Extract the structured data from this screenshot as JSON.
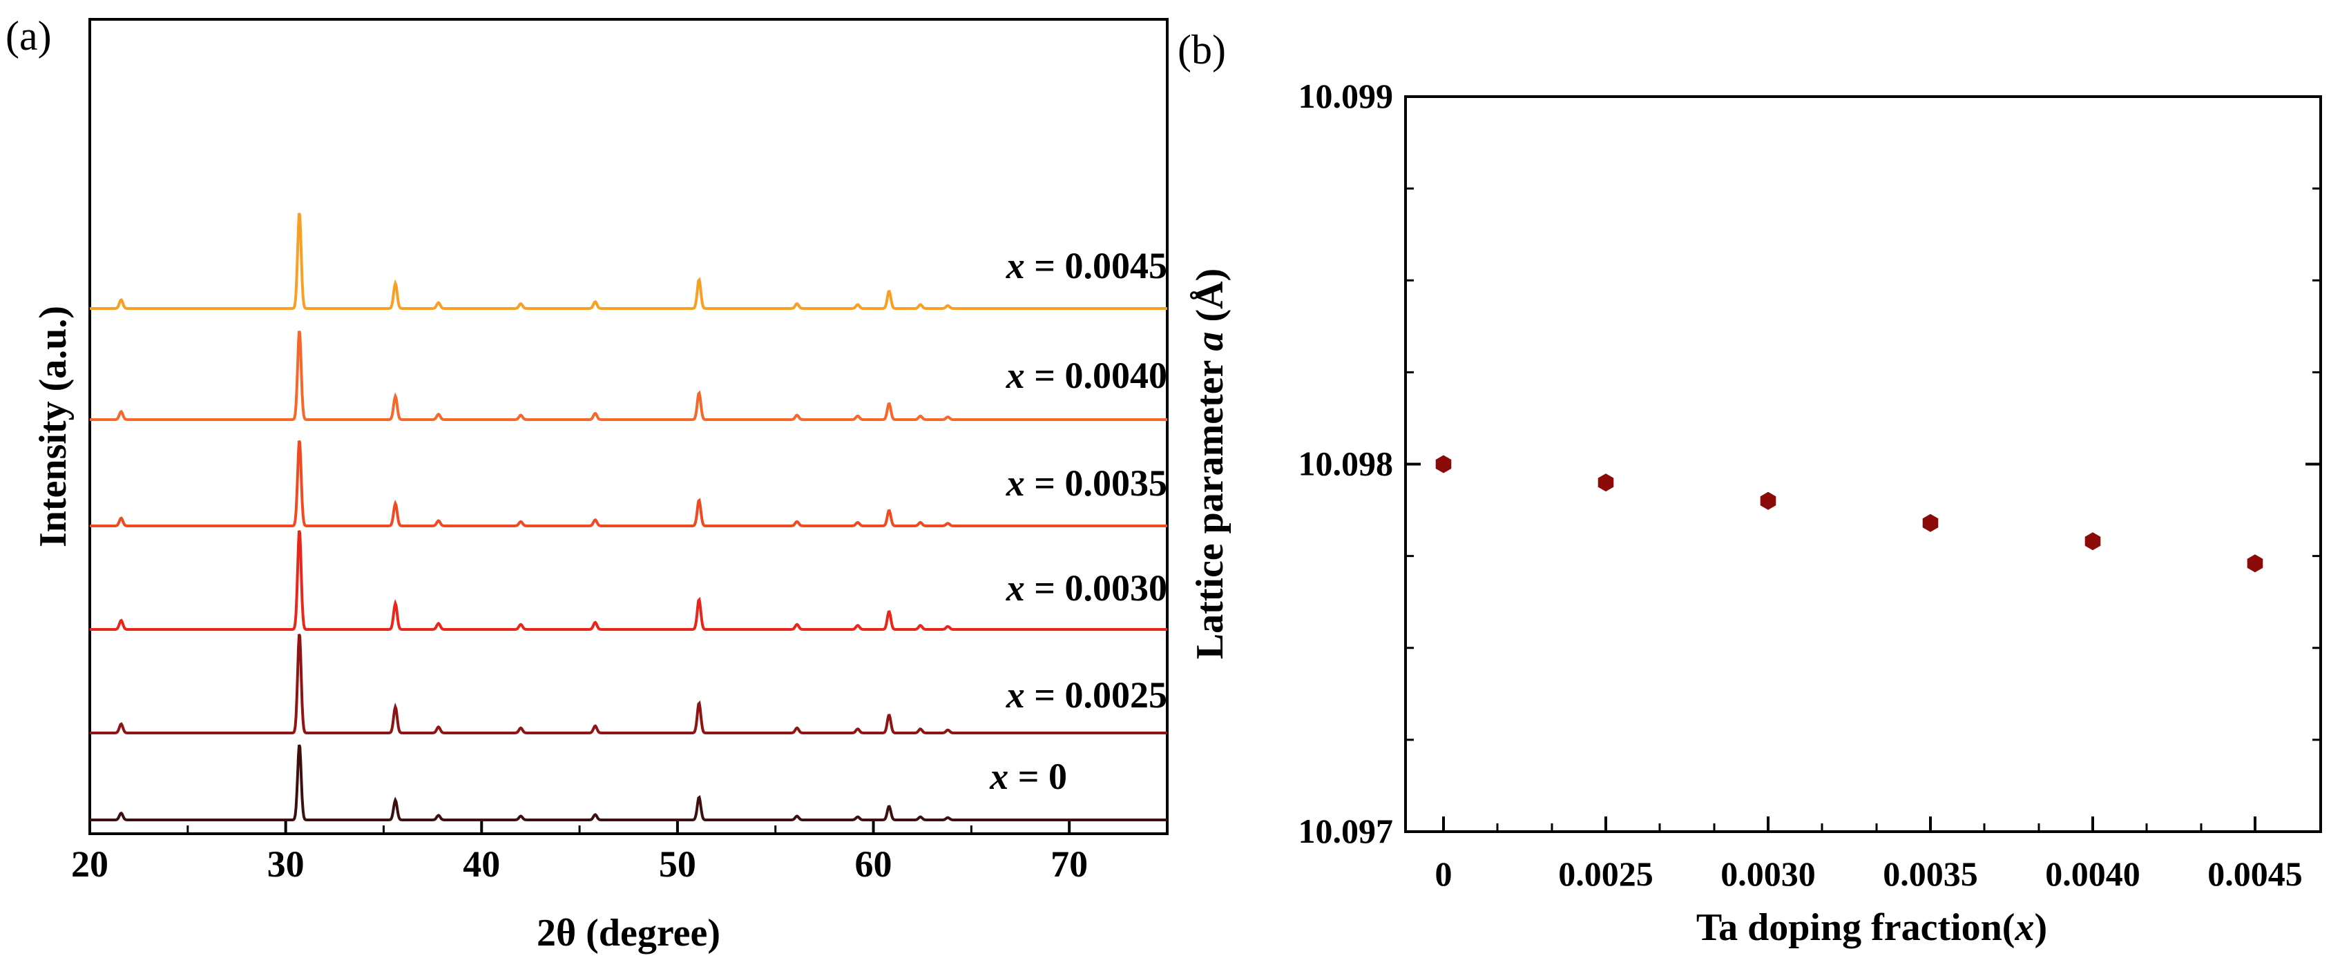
{
  "chart_data": [
    {
      "panel": "(a)",
      "type": "line",
      "xlabel": "2θ (degree)",
      "ylabel": "Intensity (a.u.)",
      "xlim": [
        20,
        75
      ],
      "xticks": [
        "20",
        "30",
        "40",
        "50",
        "60",
        "70"
      ],
      "yticks": "none",
      "peaks_2theta": [
        21.6,
        30.7,
        35.6,
        37.8,
        42.0,
        45.8,
        51.1,
        56.1,
        59.2,
        60.8,
        62.4,
        63.8
      ],
      "peak_relative_intensity": [
        0.09,
        1.0,
        0.26,
        0.06,
        0.05,
        0.07,
        0.3,
        0.05,
        0.04,
        0.18,
        0.04,
        0.03
      ],
      "series": [
        {
          "name": "x = 0",
          "x_prefix": "x",
          "x_value": "= 0",
          "color": "#3d0f0f"
        },
        {
          "name": "x = 0.0025",
          "x_prefix": "x",
          "x_value": "= 0.0025",
          "color": "#8f1414"
        },
        {
          "name": "x = 0.0030",
          "x_prefix": "x",
          "x_value": "= 0.0030",
          "color": "#e8261a"
        },
        {
          "name": "x = 0.0035",
          "x_prefix": "x",
          "x_value": "= 0.0035",
          "color": "#f04a22"
        },
        {
          "name": "x = 0.0040",
          "x_prefix": "x",
          "x_value": "= 0.0040",
          "color": "#f5672a"
        },
        {
          "name": "x = 0.0045",
          "x_prefix": "x",
          "x_value": "= 0.0045",
          "color": "#f8a024"
        }
      ]
    },
    {
      "panel": "(b)",
      "type": "scatter",
      "xlabel_main": "Ta doping fraction(",
      "xlabel_var": "x",
      "xlabel_end": ")",
      "ylabel_main": "Lattice parameter ",
      "ylabel_var": "a",
      "ylabel_end": " (Å)",
      "categories": [
        "0",
        "0.0025",
        "0.0030",
        "0.0035",
        "0.0040",
        "0.0045"
      ],
      "values": [
        10.098,
        10.09795,
        10.0979,
        10.09784,
        10.09779,
        10.09773
      ],
      "ylim": [
        10.097,
        10.099
      ],
      "yticks": [
        "10.097",
        "10.098",
        "10.099"
      ],
      "marker_color": "#8b0a0a"
    }
  ]
}
